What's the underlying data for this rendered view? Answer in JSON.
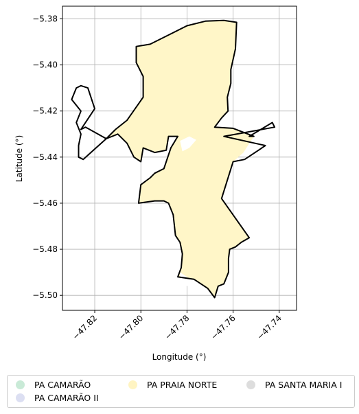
{
  "chart_data": {
    "type": "map",
    "xlabel": "Longitude (°)",
    "ylabel": "Latitude (°)",
    "xlim": [
      -47.834,
      -47.7325
    ],
    "ylim": [
      -5.5065,
      -5.3745
    ],
    "xticks": [
      -47.82,
      -47.8,
      -47.78,
      -47.76,
      -47.74
    ],
    "xtick_labels": [
      "−47.82",
      "−47.80",
      "−47.78",
      "−47.76",
      "−47.74"
    ],
    "yticks": [
      -5.38,
      -5.4,
      -5.42,
      -5.44,
      -5.46,
      -5.48,
      -5.5
    ],
    "ytick_labels": [
      "−5.38",
      "−5.40",
      "−5.42",
      "−5.44",
      "−5.46",
      "−5.48",
      "−5.50"
    ],
    "grid": true,
    "legend_position": "bottom",
    "boundary_color": "#000000",
    "fill_color": "#fff6c8",
    "legend": [
      {
        "label": "PA CAMARÃO",
        "color": "#c9ead7"
      },
      {
        "label": "PA CAMARÃO II",
        "color": "#dcdff2"
      },
      {
        "label": "PA PRAIA NORTE",
        "color": "#fff4c2"
      },
      {
        "label": "PA SANTA MARIA I",
        "color": "#dddddd"
      }
    ],
    "filled_region": [
      [
        -47.796,
        -5.391
      ],
      [
        -47.788,
        -5.387
      ],
      [
        -47.78,
        -5.383
      ],
      [
        -47.772,
        -5.381
      ],
      [
        -47.764,
        -5.3807
      ],
      [
        -47.7585,
        -5.3815
      ],
      [
        -47.759,
        -5.393
      ],
      [
        -47.761,
        -5.402
      ],
      [
        -47.761,
        -5.408
      ],
      [
        -47.7625,
        -5.414
      ],
      [
        -47.7622,
        -5.42
      ],
      [
        -47.765,
        -5.423
      ],
      [
        -47.768,
        -5.427
      ],
      [
        -47.76,
        -5.4275
      ],
      [
        -47.751,
        -5.431
      ],
      [
        -47.7555,
        -5.438
      ],
      [
        -47.76,
        -5.442
      ],
      [
        -47.765,
        -5.458
      ],
      [
        -47.753,
        -5.475
      ],
      [
        -47.7565,
        -5.477
      ],
      [
        -47.759,
        -5.479
      ],
      [
        -47.7615,
        -5.48
      ],
      [
        -47.762,
        -5.484
      ],
      [
        -47.762,
        -5.49
      ],
      [
        -47.764,
        -5.495
      ],
      [
        -47.7665,
        -5.496
      ],
      [
        -47.768,
        -5.501
      ],
      [
        -47.771,
        -5.497
      ],
      [
        -47.777,
        -5.493
      ],
      [
        -47.784,
        -5.492
      ],
      [
        -47.7825,
        -5.488
      ],
      [
        -47.782,
        -5.482
      ],
      [
        -47.783,
        -5.477
      ],
      [
        -47.785,
        -5.474
      ],
      [
        -47.786,
        -5.465
      ],
      [
        -47.788,
        -5.46
      ],
      [
        -47.79,
        -5.459
      ],
      [
        -47.794,
        -5.459
      ],
      [
        -47.801,
        -5.46
      ],
      [
        -47.8,
        -5.452
      ],
      [
        -47.796,
        -5.449
      ],
      [
        -47.794,
        -5.447
      ],
      [
        -47.79,
        -5.445
      ],
      [
        -47.787,
        -5.436
      ],
      [
        -47.784,
        -5.431
      ],
      [
        -47.788,
        -5.431
      ],
      [
        -47.789,
        -5.437
      ],
      [
        -47.794,
        -5.438
      ],
      [
        -47.799,
        -5.436
      ],
      [
        -47.8,
        -5.442
      ],
      [
        -47.803,
        -5.44
      ],
      [
        -47.806,
        -5.434
      ],
      [
        -47.81,
        -5.43
      ],
      [
        -47.815,
        -5.432
      ],
      [
        -47.811,
        -5.428
      ],
      [
        -47.806,
        -5.424
      ],
      [
        -47.799,
        -5.414
      ],
      [
        -47.799,
        -5.405
      ],
      [
        -47.802,
        -5.399
      ],
      [
        -47.802,
        -5.392
      ]
    ],
    "white_patches": [
      [
        [
          -47.783,
          -5.433
        ],
        [
          -47.779,
          -5.431
        ],
        [
          -47.776,
          -5.4325
        ],
        [
          -47.779,
          -5.436
        ],
        [
          -47.782,
          -5.4375
        ]
      ],
      [
        [
          -47.783,
          -5.49
        ],
        [
          -47.78,
          -5.492
        ],
        [
          -47.778,
          -5.494
        ],
        [
          -47.78,
          -5.496
        ],
        [
          -47.783,
          -5.494
        ]
      ]
    ],
    "boundary_line": [
      [
        -47.796,
        -5.391
      ],
      [
        -47.788,
        -5.387
      ],
      [
        -47.78,
        -5.383
      ],
      [
        -47.772,
        -5.381
      ],
      [
        -47.764,
        -5.3807
      ],
      [
        -47.7585,
        -5.3815
      ],
      [
        -47.759,
        -5.393
      ],
      [
        -47.761,
        -5.402
      ],
      [
        -47.761,
        -5.408
      ],
      [
        -47.7625,
        -5.414
      ],
      [
        -47.7622,
        -5.42
      ],
      [
        -47.765,
        -5.423
      ],
      [
        -47.768,
        -5.427
      ],
      [
        -47.76,
        -5.4275
      ],
      [
        -47.751,
        -5.431
      ],
      [
        -47.753,
        -5.431
      ],
      [
        -47.743,
        -5.425
      ],
      [
        -47.742,
        -5.427
      ],
      [
        -47.764,
        -5.431
      ],
      [
        -47.746,
        -5.435
      ],
      [
        -47.749,
        -5.437
      ],
      [
        -47.755,
        -5.441
      ],
      [
        -47.76,
        -5.442
      ],
      [
        -47.765,
        -5.458
      ],
      [
        -47.753,
        -5.475
      ],
      [
        -47.7565,
        -5.477
      ],
      [
        -47.759,
        -5.479
      ],
      [
        -47.7615,
        -5.48
      ],
      [
        -47.762,
        -5.484
      ],
      [
        -47.762,
        -5.49
      ],
      [
        -47.764,
        -5.495
      ],
      [
        -47.7665,
        -5.496
      ],
      [
        -47.768,
        -5.501
      ],
      [
        -47.771,
        -5.497
      ],
      [
        -47.777,
        -5.493
      ],
      [
        -47.784,
        -5.492
      ],
      [
        -47.7825,
        -5.488
      ],
      [
        -47.782,
        -5.482
      ],
      [
        -47.783,
        -5.477
      ],
      [
        -47.785,
        -5.474
      ],
      [
        -47.786,
        -5.465
      ],
      [
        -47.788,
        -5.46
      ],
      [
        -47.79,
        -5.459
      ],
      [
        -47.794,
        -5.459
      ],
      [
        -47.801,
        -5.46
      ],
      [
        -47.8,
        -5.452
      ],
      [
        -47.796,
        -5.449
      ],
      [
        -47.794,
        -5.447
      ],
      [
        -47.79,
        -5.445
      ],
      [
        -47.787,
        -5.436
      ],
      [
        -47.784,
        -5.431
      ],
      [
        -47.788,
        -5.431
      ],
      [
        -47.789,
        -5.437
      ],
      [
        -47.794,
        -5.438
      ],
      [
        -47.799,
        -5.436
      ],
      [
        -47.8,
        -5.442
      ],
      [
        -47.803,
        -5.44
      ],
      [
        -47.806,
        -5.434
      ],
      [
        -47.81,
        -5.43
      ],
      [
        -47.815,
        -5.432
      ],
      [
        -47.824,
        -5.427
      ],
      [
        -47.826,
        -5.428
      ],
      [
        -47.82,
        -5.419
      ],
      [
        -47.823,
        -5.41
      ],
      [
        -47.826,
        -5.409
      ],
      [
        -47.828,
        -5.41
      ],
      [
        -47.83,
        -5.415
      ],
      [
        -47.826,
        -5.42
      ],
      [
        -47.828,
        -5.425
      ],
      [
        -47.826,
        -5.43
      ],
      [
        -47.827,
        -5.435
      ],
      [
        -47.827,
        -5.44
      ],
      [
        -47.825,
        -5.441
      ],
      [
        -47.815,
        -5.432
      ],
      [
        -47.811,
        -5.428
      ],
      [
        -47.806,
        -5.424
      ],
      [
        -47.799,
        -5.414
      ],
      [
        -47.799,
        -5.405
      ],
      [
        -47.802,
        -5.399
      ],
      [
        -47.802,
        -5.392
      ],
      [
        -47.796,
        -5.391
      ]
    ]
  }
}
